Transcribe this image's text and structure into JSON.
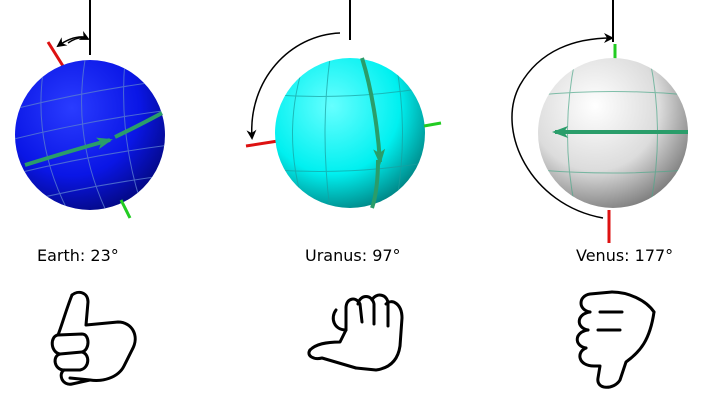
{
  "planets": [
    {
      "name": "Earth",
      "tilt_deg": 23,
      "label": "Earth: 23°",
      "body_color": "#0a16e6",
      "hand": "thumb-up-tilted"
    },
    {
      "name": "Uranus",
      "tilt_deg": 97,
      "label": "Uranus: 97°",
      "body_color": "#00f0f0",
      "hand": "thumb-sideways"
    },
    {
      "name": "Venus",
      "tilt_deg": 177,
      "label": "Venus: 177°",
      "body_color": "#dcdcdc",
      "hand": "thumb-down"
    }
  ],
  "colors": {
    "axis_north": "#dd1111",
    "axis_south": "#22cc22",
    "rotation_arrow": "#2a9d6a",
    "reference_line": "#000000"
  }
}
